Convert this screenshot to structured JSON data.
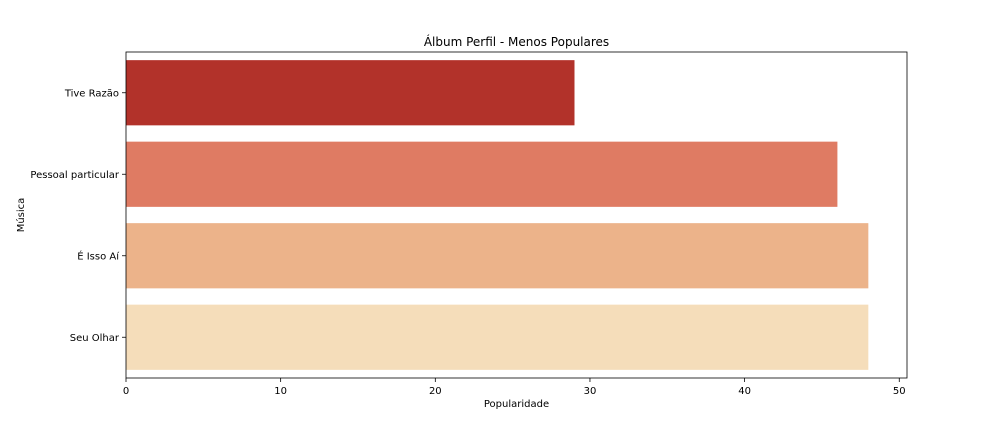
{
  "chart_data": {
    "type": "bar",
    "orientation": "horizontal",
    "title": "Álbum Perfil - Menos Populares",
    "xlabel": "Popularidade",
    "ylabel": "Música",
    "categories": [
      "Tive Razão",
      "Pessoal particular",
      "É Isso Aí",
      "Seu Olhar"
    ],
    "values": [
      29,
      46,
      48,
      48
    ],
    "colors": [
      "#b2322a",
      "#df7b63",
      "#ecb38a",
      "#f5ddba"
    ],
    "xlim": [
      0,
      50.5
    ],
    "xticks": [
      0,
      10,
      20,
      30,
      40,
      50
    ],
    "grid": false,
    "legend": "none"
  }
}
